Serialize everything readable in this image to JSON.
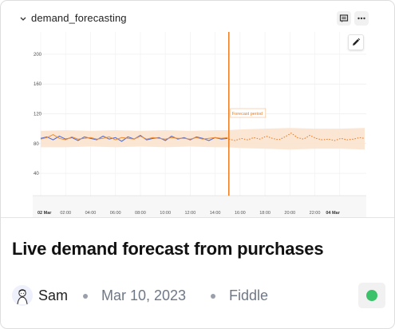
{
  "notebook": {
    "name": "demand_forecasting"
  },
  "card": {
    "title": "Live demand forecast from purchases",
    "author": "Sam",
    "date": "Mar 10, 2023",
    "project": "Fiddle",
    "status_color": "#3cc26b"
  },
  "icons": {
    "collapse": "chevron-down-icon",
    "comment": "comment-icon",
    "more": "more-horizontal-icon",
    "edit": "pencil-icon"
  },
  "chart_data": {
    "type": "line",
    "title": "",
    "xlabel": "",
    "ylabel": "",
    "ylim": [
      10,
      230
    ],
    "yticks": [
      40,
      80,
      120,
      160,
      200
    ],
    "x_tick_labels": [
      "02 Mar",
      "02:00",
      "04:00",
      "06:00",
      "08:00",
      "10:00",
      "12:00",
      "14:00",
      "16:00",
      "18:00",
      "20:00",
      "22:00",
      "04 Mar"
    ],
    "x_tick_bold": [
      true,
      false,
      false,
      false,
      false,
      false,
      false,
      false,
      false,
      false,
      false,
      false,
      true
    ],
    "x_range_hours": [
      0,
      26
    ],
    "forecast_start_hour": 15.1,
    "annotation": "Forecast period",
    "grid": true,
    "colors": {
      "actual": "#4f6fd8",
      "fitted": "#ef8a2f",
      "forecast": "#e8731c",
      "band": "#fbe3cf",
      "divider": "#ec7a1c"
    },
    "series": [
      {
        "x": [
          0,
          0.5,
          1,
          1.5,
          2,
          2.5,
          3,
          3.5,
          4,
          4.5,
          5,
          5.5,
          6,
          6.5,
          7,
          7.5,
          8,
          8.5,
          9,
          9.5,
          10,
          10.5,
          11,
          11.5,
          12,
          12.5,
          13,
          13.5,
          14,
          14.5,
          15
        ],
        "values": [
          87,
          89,
          85,
          90,
          86,
          88,
          84,
          89,
          87,
          85,
          90,
          86,
          88,
          83,
          89,
          86,
          91,
          85,
          87,
          88,
          84,
          90,
          86,
          88,
          85,
          89,
          87,
          84,
          88,
          86,
          87
        ]
      },
      {
        "x": [
          0,
          0.5,
          1,
          1.5,
          2,
          2.5,
          3,
          3.5,
          4,
          4.5,
          5,
          5.5,
          6,
          6.5,
          7,
          7.5,
          8,
          8.5,
          9,
          9.5,
          10,
          10.5,
          11,
          11.5,
          12,
          12.5,
          13,
          13.5,
          14,
          14.5,
          15
        ],
        "values": [
          86,
          88,
          92,
          87,
          85,
          89,
          86,
          87,
          88,
          86,
          87,
          89,
          85,
          88,
          87,
          86,
          90,
          86,
          88,
          87,
          86,
          88,
          87,
          87,
          86,
          88,
          86,
          87,
          88,
          87,
          88
        ]
      },
      {
        "x": [
          15.1,
          15.6,
          16.1,
          16.6,
          17.1,
          17.6,
          18.1,
          18.6,
          19.1,
          19.6,
          20.1,
          20.6,
          21.1,
          21.6,
          22.1,
          22.6,
          23.1,
          23.6,
          24.1,
          24.6,
          25.1,
          25.6,
          26
        ],
        "values": [
          86,
          84,
          87,
          85,
          88,
          86,
          90,
          87,
          85,
          89,
          94,
          88,
          86,
          91,
          87,
          85,
          86,
          84,
          87,
          85,
          86,
          88,
          87
        ]
      }
    ],
    "band": {
      "x": [
        0,
        2,
        4,
        6,
        8,
        10,
        12,
        14,
        15,
        16,
        18,
        20,
        22,
        24,
        26
      ],
      "upper": [
        97,
        98,
        97,
        98,
        97,
        98,
        97,
        98,
        98,
        99,
        100,
        101,
        100,
        100,
        101
      ],
      "lower": [
        75,
        75,
        76,
        75,
        76,
        75,
        76,
        75,
        75,
        74,
        73,
        72,
        73,
        73,
        72
      ]
    }
  }
}
